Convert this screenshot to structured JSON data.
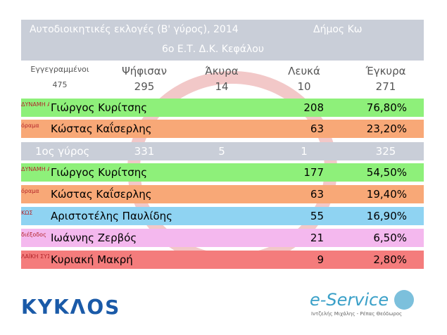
{
  "header": {
    "title": "Αυτοδιοικητικές εκλογές (Β' γύρος), 2014",
    "municipality": "Δήμος Κω",
    "station": "6ο Ε.Τ. Δ.Κ. Κεφάλου"
  },
  "summary": {
    "labels": [
      "Εγγεγραμμένοι",
      "Ψήφισαν",
      "Άκυρα",
      "Λευκά",
      "Έγκυρα"
    ],
    "values": [
      "475",
      "295",
      "14",
      "10",
      "271"
    ]
  },
  "round2": [
    {
      "logo": "ΔΥΝΑΜΗ ΑΛΛΑΓΗΣ",
      "name": "Γιώργος Κυρίτσης",
      "votes": "208",
      "percent": "76,80%",
      "color": "#8ef07a"
    },
    {
      "logo": "όραμα",
      "name": "Κώστας Καΐσερλης",
      "votes": "63",
      "percent": "23,20%",
      "color": "#f8a877"
    }
  ],
  "round1_summary": {
    "label": "1ος γύρος",
    "values": [
      "331",
      "5",
      "1",
      "325"
    ]
  },
  "round1": [
    {
      "logo": "ΔΥΝΑΜΗ ΑΛΛΑΓΗΣ",
      "name": "Γιώργος Κυρίτσης",
      "votes": "177",
      "percent": "54,50%",
      "color": "#8ef07a"
    },
    {
      "logo": "όραμα",
      "name": "Κώστας Καΐσερλης",
      "votes": "63",
      "percent": "19,40%",
      "color": "#f8a877"
    },
    {
      "logo": "ΚΩΣ",
      "name": "Αριστοτέλης Παυλίδης",
      "votes": "55",
      "percent": "16,90%",
      "color": "#8fd3f2"
    },
    {
      "logo": "διέξοδος",
      "name": "Ιωάννης Ζερβός",
      "votes": "21",
      "percent": "6,50%",
      "color": "#f4b8ee"
    },
    {
      "logo": "ΛΑΪΚΗ ΣΥΣΠΕΙΡΩΣΗ",
      "name": "Κυριακή Μακρή",
      "votes": "9",
      "percent": "2,80%",
      "color": "#f47c7c"
    }
  ],
  "footer": {
    "left_logo": "ΚΥΚΛΟS",
    "right_logo": "e-Service",
    "right_sub": "Ιντζελής Μιχάλης - Ρέπας Θεόδωρος"
  }
}
